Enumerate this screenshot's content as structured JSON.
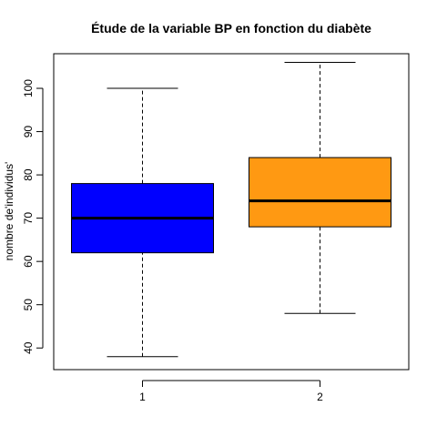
{
  "chart_data": {
    "type": "boxplot",
    "title": "Étude de la variable BP en fonction du diabète",
    "xlabel": "",
    "ylabel": "nombre de'individus'",
    "categories": [
      "1",
      "2"
    ],
    "ylim": [
      35,
      108
    ],
    "yticks": [
      40,
      50,
      60,
      70,
      80,
      90,
      100
    ],
    "grid": false,
    "boxes": [
      {
        "category": "1",
        "whisker_low": 38,
        "q1": 62,
        "median": 70,
        "q3": 78,
        "whisker_high": 100,
        "color": "#0000ff"
      },
      {
        "category": "2",
        "whisker_low": 48,
        "q1": 68,
        "median": 74,
        "q3": 84,
        "whisker_high": 106,
        "color": "#ff9912"
      }
    ]
  }
}
